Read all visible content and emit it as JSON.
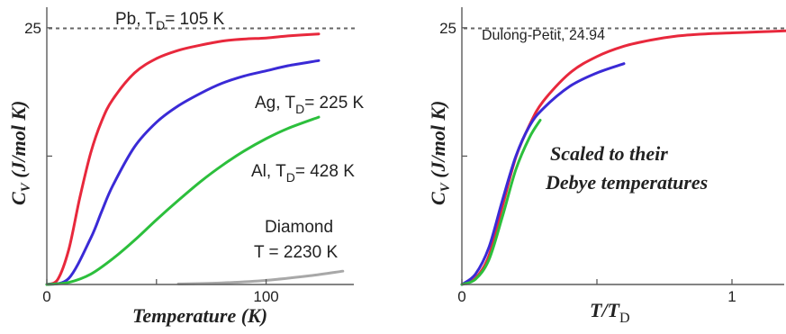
{
  "chart_data": [
    {
      "type": "line",
      "xlabel": "Temperature (K)",
      "ylabel_main": "C",
      "ylabel_sub": "V",
      "ylabel_rest": " (J/mol K)",
      "xlim": [
        0,
        140
      ],
      "ylim": [
        0,
        27
      ],
      "x_ticks": [
        0,
        50,
        100
      ],
      "x_tick_labels": [
        "0",
        "",
        "100"
      ],
      "y_ticks": [
        0,
        12.5,
        25
      ],
      "y_tick_labels": [
        "",
        "",
        "25"
      ],
      "reference_line": {
        "y": 24.94,
        "label": ""
      },
      "series": [
        {
          "name": "Pb",
          "color": "#e8283c",
          "x": [
            0,
            5,
            10,
            15,
            20,
            25,
            30,
            40,
            50,
            60,
            70,
            80,
            90,
            100,
            110,
            124
          ],
          "y": [
            0,
            0.5,
            3.4,
            8.4,
            12.8,
            15.9,
            18.0,
            20.6,
            22.0,
            22.8,
            23.3,
            23.7,
            23.9,
            24.0,
            24.2,
            24.4
          ]
        },
        {
          "name": "Ag",
          "color": "#3a2ad6",
          "x": [
            0,
            10,
            20,
            25,
            30,
            40,
            50,
            60,
            70,
            80,
            90,
            100,
            110,
            124
          ],
          "y": [
            0,
            0.6,
            4.5,
            7.1,
            9.6,
            13.4,
            15.8,
            17.4,
            18.6,
            19.6,
            20.3,
            20.8,
            21.3,
            21.8
          ]
        },
        {
          "name": "Al",
          "color": "#2cbf3c",
          "x": [
            0,
            10,
            20,
            30,
            40,
            50,
            60,
            70,
            80,
            90,
            100,
            110,
            124
          ],
          "y": [
            0,
            0.2,
            1.0,
            2.5,
            4.3,
            6.3,
            8.2,
            10.0,
            11.6,
            13.0,
            14.2,
            15.2,
            16.3
          ]
        },
        {
          "name": "Diamond",
          "color": "#a8a8a8",
          "x": [
            60,
            80,
            100,
            120,
            135
          ],
          "y": [
            0.05,
            0.15,
            0.4,
            0.85,
            1.3
          ]
        }
      ],
      "annotations": [
        {
          "text_main": "Pb, T",
          "text_sub": "D",
          "text_rest": "= 105 K"
        },
        {
          "text_main": "Ag, T",
          "text_sub": "D",
          "text_rest": "= 225 K"
        },
        {
          "text_main": "Al, T",
          "text_sub": "D",
          "text_rest": "= 428 K"
        },
        {
          "text_main": "Diamond"
        },
        {
          "text_main": "T",
          "text_sub": "",
          "text_rest": " = 2230 K"
        }
      ]
    },
    {
      "type": "line",
      "xlabel_main": "T/T",
      "xlabel_sub": "D",
      "ylabel_main": "C",
      "ylabel_sub": "V",
      "ylabel_rest": " (J/mol K)",
      "xlim": [
        0,
        1.2
      ],
      "ylim": [
        0,
        27
      ],
      "x_ticks": [
        0,
        0.5,
        1
      ],
      "x_tick_labels": [
        "0",
        "",
        "1"
      ],
      "y_ticks": [
        0,
        12.5,
        25
      ],
      "y_tick_labels": [
        "",
        "",
        "25"
      ],
      "reference_line": {
        "y": 24.94,
        "label": "Dulong-Petit, 24.94"
      },
      "annotations": [
        "Scaled to their",
        "Debye temperatures"
      ],
      "series": [
        {
          "name": "Pb",
          "color": "#e8283c",
          "x": [
            0,
            0.05,
            0.1,
            0.15,
            0.2,
            0.25,
            0.3,
            0.4,
            0.5,
            0.6,
            0.7,
            0.8,
            0.9,
            1.0,
            1.1,
            1.2
          ],
          "y": [
            0,
            0.6,
            2.8,
            7.6,
            12.4,
            15.5,
            17.8,
            20.6,
            22.2,
            23.2,
            23.8,
            24.2,
            24.4,
            24.5,
            24.6,
            24.7
          ]
        },
        {
          "name": "Ag",
          "color": "#3a2ad6",
          "x": [
            0,
            0.05,
            0.1,
            0.15,
            0.2,
            0.25,
            0.3,
            0.4,
            0.5,
            0.6
          ],
          "y": [
            0,
            1.0,
            3.6,
            8.2,
            12.5,
            15.4,
            17.1,
            19.3,
            20.6,
            21.5
          ]
        },
        {
          "name": "Al",
          "color": "#2cbf3c",
          "x": [
            0,
            0.05,
            0.1,
            0.15,
            0.2,
            0.25,
            0.29
          ],
          "y": [
            0,
            0.5,
            2.4,
            6.6,
            11.2,
            14.3,
            16.0
          ]
        }
      ]
    }
  ]
}
